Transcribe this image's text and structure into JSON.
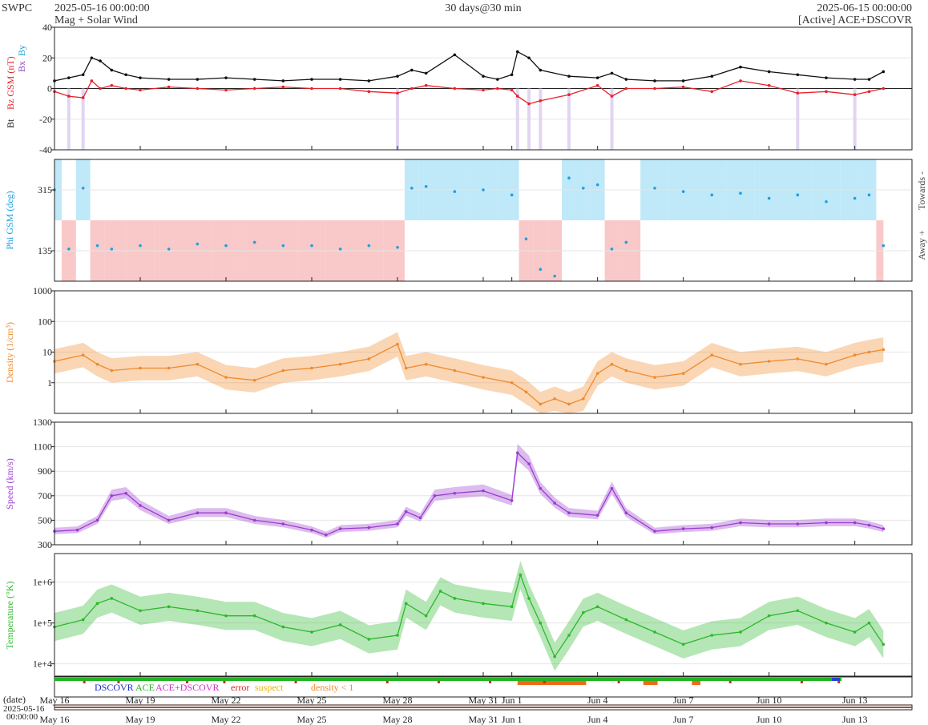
{
  "header": {
    "source": "SWPC",
    "start_time": "2025-05-16 00:00:00",
    "subtitle": "Mag + Solar Wind",
    "span": "30 days@30 min",
    "end_time": "2025-06-15 00:00:00",
    "spacecraft": "[Active] ACE+DSCOVR"
  },
  "x_axis": {
    "ticks": [
      "May 16",
      "May 19",
      "May 22",
      "May 25",
      "May 28",
      "May 31",
      "Jun 1",
      "Jun 4",
      "Jun 7",
      "Jun 10",
      "Jun 13"
    ],
    "tick_days": [
      0,
      3,
      6,
      9,
      12,
      15,
      16,
      19,
      22,
      25,
      28
    ],
    "date_label": "(date)",
    "first_date": "2025-05-16",
    "first_time": "00:00:00"
  },
  "legend": {
    "dscovr": "DSCOVR",
    "ace": "ACE",
    "ace_dscovr": "ACE+DSCOVR",
    "error": "error",
    "suspect": "suspect",
    "density": "density < 1"
  },
  "colors": {
    "bt": "#111111",
    "bz": "#e8202a",
    "bx": "#8e44c8",
    "by": "#1aa3dc",
    "phi": "#1ea0e0",
    "towards_fill": "#bfe8f8",
    "away_fill": "#f9c8c8",
    "density": "#f08a2c",
    "speed": "#9b3ccf",
    "temperature": "#2cb82c"
  },
  "chart_data": [
    {
      "type": "line",
      "panel": "magnetic",
      "ylabel_parts": [
        "Bt",
        "Bz GSM (nT)",
        "Bx",
        "By"
      ],
      "ylim": [
        -40,
        40
      ],
      "yticks": [
        -40,
        -20,
        0,
        20,
        40
      ],
      "x_days": [
        0,
        0.5,
        1,
        1.3,
        1.6,
        2,
        2.5,
        3,
        4,
        5,
        6,
        7,
        8,
        9,
        10,
        11,
        12,
        12.5,
        13,
        14,
        15,
        15.5,
        16,
        16.2,
        16.6,
        17,
        18,
        19,
        19.5,
        20,
        21,
        22,
        23,
        24,
        25,
        26,
        27,
        28,
        28.5,
        29
      ],
      "series": [
        {
          "name": "Bt",
          "values": [
            5,
            7,
            9,
            20,
            18,
            12,
            9,
            7,
            6,
            6,
            7,
            6,
            5,
            6,
            6,
            5,
            8,
            12,
            10,
            22,
            8,
            6,
            9,
            24,
            20,
            12,
            8,
            7,
            10,
            6,
            5,
            5,
            8,
            14,
            11,
            9,
            7,
            6,
            6,
            11
          ]
        },
        {
          "name": "Bz",
          "values": [
            -2,
            -5,
            -6,
            5,
            0,
            2,
            0,
            -1,
            1,
            0,
            -1,
            0,
            1,
            0,
            0,
            -2,
            -3,
            0,
            2,
            0,
            -1,
            0,
            -1,
            -5,
            -10,
            -8,
            -4,
            2,
            -5,
            0,
            0,
            1,
            -2,
            5,
            2,
            -3,
            -2,
            -4,
            -2,
            0
          ]
        }
      ]
    },
    {
      "type": "scatter",
      "panel": "phi",
      "ylabel": "Phi GSM (deg)",
      "right_labels": [
        "Towards -",
        "Away +"
      ],
      "ylim": [
        45,
        405
      ],
      "yticks": [
        135,
        315
      ],
      "x_days": [
        0,
        0.5,
        1,
        1.5,
        2,
        3,
        4,
        5,
        6,
        7,
        8,
        9,
        10,
        11,
        12,
        12.5,
        13,
        14,
        15,
        16,
        16.5,
        17,
        17.5,
        18,
        18.5,
        19,
        19.5,
        20,
        21,
        22,
        23,
        24,
        25,
        26,
        27,
        28,
        28.5,
        29
      ],
      "values": [
        315,
        140,
        320,
        150,
        140,
        150,
        140,
        155,
        150,
        160,
        150,
        150,
        140,
        150,
        145,
        320,
        325,
        310,
        315,
        300,
        170,
        80,
        60,
        350,
        320,
        330,
        140,
        160,
        320,
        310,
        300,
        305,
        290,
        300,
        280,
        290,
        300,
        150
      ]
    },
    {
      "type": "line",
      "panel": "density",
      "ylabel": "Density (1/cm³)",
      "yscale": "log",
      "ylim": [
        0.1,
        1000
      ],
      "yticks": [
        1,
        10,
        100,
        1000
      ],
      "x_days": [
        0,
        1,
        1.5,
        2,
        3,
        4,
        5,
        6,
        7,
        8,
        9,
        10,
        11,
        12,
        12.3,
        13,
        14,
        15,
        16,
        16.5,
        17,
        17.5,
        18,
        18.5,
        19,
        19.5,
        20,
        21,
        22,
        23,
        24,
        25,
        26,
        27,
        28,
        28.5,
        29
      ],
      "values": [
        5,
        8,
        4,
        2.5,
        3,
        3,
        4,
        1.5,
        1.2,
        2.5,
        3,
        4,
        6,
        18,
        3,
        4,
        2.5,
        1.5,
        1,
        0.5,
        0.2,
        0.3,
        0.2,
        0.3,
        2,
        4,
        2.5,
        1.5,
        2,
        8,
        4,
        5,
        6,
        4,
        8,
        10,
        12
      ]
    },
    {
      "type": "line",
      "panel": "speed",
      "ylabel": "Speed (km/s)",
      "ylim": [
        300,
        1300
      ],
      "yticks": [
        300,
        500,
        700,
        900,
        1100,
        1300
      ],
      "x_days": [
        0,
        0.8,
        1.5,
        2,
        2.5,
        3,
        4,
        5,
        6,
        7,
        8,
        9,
        9.5,
        10,
        11,
        12,
        12.3,
        12.8,
        13.3,
        14,
        15,
        16,
        16.2,
        16.6,
        17,
        17.5,
        18,
        19,
        19.5,
        20,
        21,
        22,
        23,
        24,
        25,
        26,
        27,
        28,
        28.5,
        29
      ],
      "values": [
        410,
        420,
        500,
        700,
        720,
        620,
        500,
        560,
        560,
        500,
        470,
        420,
        380,
        430,
        440,
        470,
        570,
        520,
        700,
        720,
        740,
        660,
        1050,
        960,
        760,
        640,
        560,
        540,
        760,
        560,
        410,
        430,
        440,
        480,
        470,
        470,
        480,
        480,
        460,
        430
      ]
    },
    {
      "type": "line",
      "panel": "temperature",
      "ylabel": "Temperature (°K)",
      "yscale": "log",
      "ylim": [
        5000,
        5000000
      ],
      "yticks": [
        10000,
        100000,
        1000000
      ],
      "ytick_labels": [
        "1e+4",
        "1e+5",
        "1e+6"
      ],
      "x_days": [
        0,
        1,
        1.5,
        2,
        3,
        4,
        5,
        6,
        7,
        8,
        9,
        10,
        11,
        12,
        12.3,
        13,
        13.5,
        14,
        15,
        16,
        16.3,
        16.6,
        17,
        17.5,
        18,
        18.5,
        19,
        20,
        21,
        22,
        23,
        24,
        25,
        26,
        27,
        28,
        28.5,
        29
      ],
      "values": [
        80000,
        120000,
        300000,
        400000,
        200000,
        250000,
        200000,
        150000,
        150000,
        80000,
        60000,
        90000,
        40000,
        50000,
        300000,
        150000,
        600000,
        400000,
        300000,
        250000,
        1500000,
        400000,
        100000,
        15000,
        50000,
        180000,
        250000,
        120000,
        60000,
        30000,
        50000,
        60000,
        150000,
        200000,
        100000,
        60000,
        100000,
        30000
      ]
    }
  ]
}
